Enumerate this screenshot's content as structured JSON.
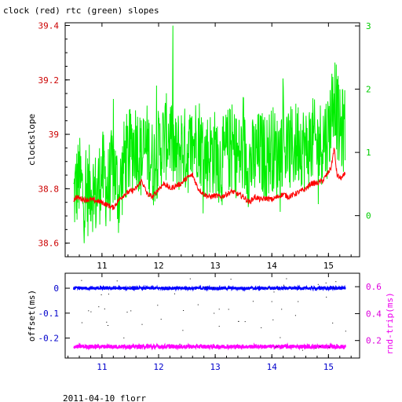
{
  "chart_data": [
    {
      "type": "line",
      "title": "clock (red) rtc (green) slopes",
      "ylabel": "clockslope",
      "xlim": [
        10.35,
        15.55
      ],
      "ylim": [
        38.55,
        39.41
      ],
      "y2lim": [
        -0.65,
        3.05
      ],
      "xticks": [
        "11",
        "12",
        "13",
        "14",
        "15"
      ],
      "yticks": [
        "38.6",
        "38.8",
        "39",
        "39.2",
        "39.4"
      ],
      "y2ticks": [
        "0",
        "1",
        "2",
        "3"
      ],
      "colors": {
        "clock": "#ff0000",
        "rtc": "#00ee00",
        "ticks_left": "#cc0000",
        "ticks_right": "#00cc00"
      },
      "series": [
        {
          "axis": "left",
          "color": "#ff0000",
          "x": [
            10.5,
            10.55,
            10.6,
            10.7,
            10.8,
            10.9,
            11.0,
            11.1,
            11.2,
            11.3,
            11.4,
            11.5,
            11.6,
            11.7,
            11.8,
            11.9,
            12.0,
            12.1,
            12.2,
            12.3,
            12.4,
            12.5,
            12.6,
            12.7,
            12.8,
            12.9,
            13.0,
            13.1,
            13.2,
            13.3,
            13.4,
            13.5,
            13.6,
            13.7,
            13.8,
            13.9,
            14.0,
            14.1,
            14.2,
            14.3,
            14.4,
            14.5,
            14.6,
            14.7,
            14.8,
            14.9,
            15.0,
            15.05,
            15.1,
            15.15,
            15.2,
            15.25,
            15.3
          ],
          "y": [
            38.76,
            38.77,
            38.765,
            38.76,
            38.76,
            38.755,
            38.75,
            38.74,
            38.73,
            38.76,
            38.78,
            38.79,
            38.8,
            38.83,
            38.78,
            38.77,
            38.8,
            38.82,
            38.8,
            38.81,
            38.82,
            38.84,
            38.85,
            38.8,
            38.78,
            38.77,
            38.775,
            38.77,
            38.78,
            38.79,
            38.78,
            38.77,
            38.75,
            38.77,
            38.76,
            38.765,
            38.76,
            38.77,
            38.78,
            38.77,
            38.78,
            38.79,
            38.8,
            38.82,
            38.82,
            38.83,
            38.86,
            38.88,
            38.95,
            38.85,
            38.84,
            38.84,
            38.86
          ]
        },
        {
          "axis": "right",
          "color": "#00ee00",
          "x": [
            10.5,
            10.6,
            10.7,
            10.8,
            10.9,
            11.0,
            11.1,
            11.2,
            11.3,
            11.4,
            11.5,
            11.6,
            11.7,
            11.8,
            11.9,
            12.0,
            12.1,
            12.2,
            12.3,
            12.4,
            12.5,
            12.6,
            12.7,
            12.8,
            12.9,
            13.0,
            13.1,
            13.2,
            13.3,
            13.4,
            13.5,
            13.6,
            13.7,
            13.8,
            13.9,
            14.0,
            14.1,
            14.2,
            14.3,
            14.4,
            14.5,
            14.6,
            14.7,
            14.8,
            14.9,
            15.0,
            15.1,
            15.2,
            15.3
          ],
          "y": [
            0.3,
            0.6,
            0.2,
            0.5,
            0.3,
            0.7,
            0.4,
            0.8,
            0.3,
            0.9,
            1.0,
            1.2,
            0.9,
            1.1,
            0.8,
            1.0,
            1.2,
            1.3,
            0.9,
            1.1,
            1.0,
            1.1,
            1.3,
            0.9,
            1.0,
            1.0,
            0.8,
            1.0,
            1.1,
            0.9,
            1.0,
            0.8,
            0.9,
            1.0,
            0.9,
            1.1,
            0.9,
            1.2,
            1.0,
            1.1,
            1.2,
            1.0,
            1.2,
            1.1,
            1.2,
            1.3,
            2.0,
            1.3,
            1.4
          ]
        }
      ]
    },
    {
      "type": "scatter",
      "ylabel": "offset(ms)",
      "y2label": "rnd-trip(ms)",
      "xlim": [
        10.35,
        15.55
      ],
      "ylim": [
        -0.28,
        0.06
      ],
      "y2lim": [
        0.07,
        0.7
      ],
      "xticks": [
        "11",
        "12",
        "13",
        "14",
        "15"
      ],
      "yticks": [
        "0",
        "-0.1",
        "-0.2"
      ],
      "y2ticks": [
        "0.6",
        "0.4",
        "0.2"
      ],
      "colors": {
        "offset": "#0000ff",
        "roundtrip": "#ff00ff",
        "ticks_left": "#0000cc",
        "ticks_right": "#dd00dd"
      },
      "series": [
        {
          "axis": "left",
          "color": "#0000ff",
          "x": [
            10.5,
            15.3
          ],
          "y": [
            0.0,
            0.0
          ]
        },
        {
          "axis": "right",
          "color": "#ff00ff",
          "x": [
            10.5,
            15.3
          ],
          "y": [
            0.155,
            0.155
          ]
        }
      ]
    }
  ],
  "footer": "2011-04-10 florr"
}
